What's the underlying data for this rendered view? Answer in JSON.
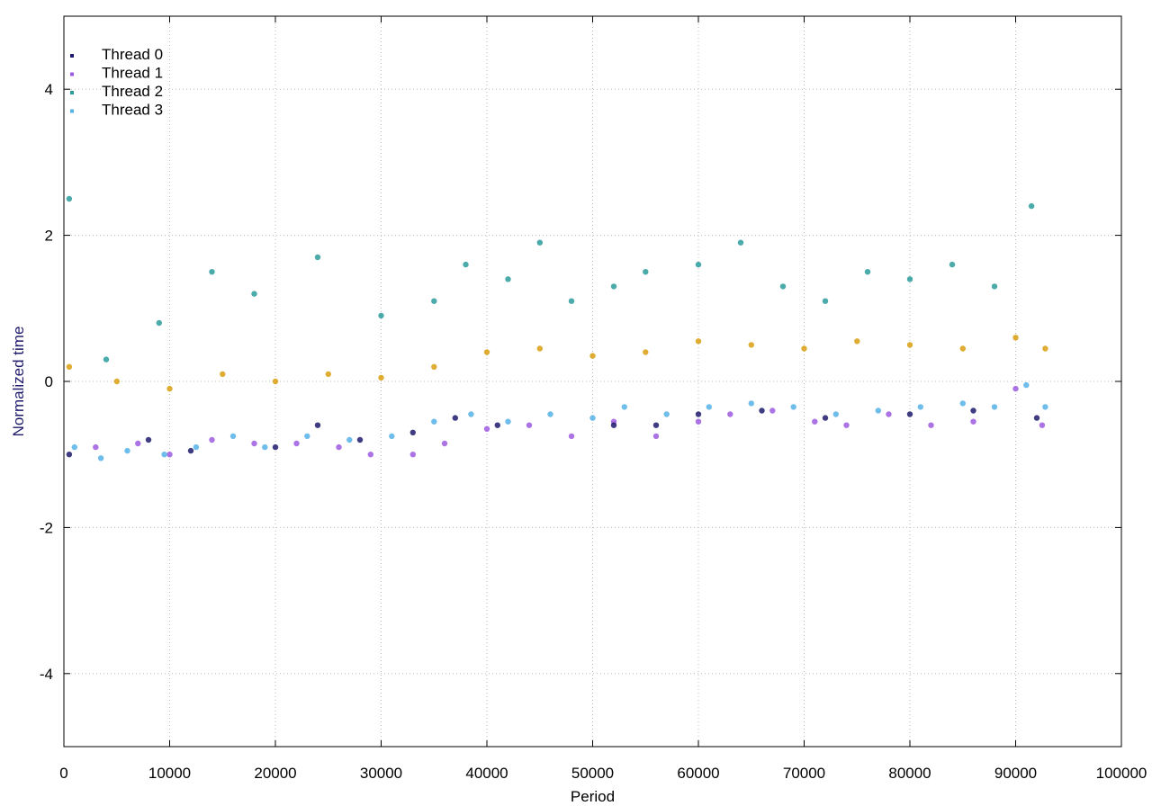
{
  "chart_data": {
    "type": "scatter",
    "title": "",
    "xlabel": "Period",
    "ylabel": "Normalized time",
    "xlim": [
      0,
      100000
    ],
    "ylim": [
      -5,
      5
    ],
    "xticks": [
      0,
      10000,
      20000,
      30000,
      40000,
      50000,
      60000,
      70000,
      80000,
      90000,
      100000
    ],
    "yticks": [
      -4,
      -2,
      0,
      2,
      4
    ],
    "grid": true,
    "legend_position": "top-left",
    "data_extent_x": [
      0,
      93000
    ],
    "series": [
      {
        "name": "Thread 0",
        "color": "#1f1a6b",
        "points": [
          [
            500,
            -1.0
          ],
          [
            8000,
            -0.8
          ],
          [
            12000,
            -0.95
          ],
          [
            20000,
            -0.9
          ],
          [
            24000,
            -0.6
          ],
          [
            28000,
            -0.8
          ],
          [
            33000,
            -0.7
          ],
          [
            37000,
            -0.5
          ],
          [
            41000,
            -0.6
          ],
          [
            52000,
            -0.6
          ],
          [
            56000,
            -0.6
          ],
          [
            60000,
            -0.45
          ],
          [
            66000,
            -0.4
          ],
          [
            72000,
            -0.5
          ],
          [
            80000,
            -0.45
          ],
          [
            86000,
            -0.4
          ],
          [
            92000,
            -0.5
          ]
        ]
      },
      {
        "name": "Thread 1",
        "color": "#9d5be0",
        "points": [
          [
            3000,
            -0.9
          ],
          [
            7000,
            -0.85
          ],
          [
            10000,
            -1.0
          ],
          [
            14000,
            -0.8
          ],
          [
            18000,
            -0.85
          ],
          [
            22000,
            -0.85
          ],
          [
            26000,
            -0.9
          ],
          [
            29000,
            -1.0
          ],
          [
            33000,
            -1.0
          ],
          [
            36000,
            -0.85
          ],
          [
            40000,
            -0.65
          ],
          [
            44000,
            -0.6
          ],
          [
            48000,
            -0.75
          ],
          [
            52000,
            -0.55
          ],
          [
            56000,
            -0.75
          ],
          [
            60000,
            -0.55
          ],
          [
            63000,
            -0.45
          ],
          [
            67000,
            -0.4
          ],
          [
            71000,
            -0.55
          ],
          [
            74000,
            -0.6
          ],
          [
            78000,
            -0.45
          ],
          [
            82000,
            -0.6
          ],
          [
            86000,
            -0.55
          ],
          [
            90000,
            -0.1
          ],
          [
            92500,
            -0.6
          ]
        ]
      },
      {
        "name": "Thread 2",
        "color": "#2b9b9b",
        "points": [
          [
            500,
            2.5
          ],
          [
            4000,
            0.3
          ],
          [
            9000,
            0.8
          ],
          [
            14000,
            1.5
          ],
          [
            18000,
            1.2
          ],
          [
            24000,
            1.7
          ],
          [
            30000,
            0.9
          ],
          [
            35000,
            1.1
          ],
          [
            38000,
            1.6
          ],
          [
            42000,
            1.4
          ],
          [
            45000,
            1.9
          ],
          [
            48000,
            1.1
          ],
          [
            52000,
            1.3
          ],
          [
            55000,
            1.5
          ],
          [
            60000,
            1.6
          ],
          [
            64000,
            1.9
          ],
          [
            68000,
            1.3
          ],
          [
            72000,
            1.1
          ],
          [
            76000,
            1.5
          ],
          [
            80000,
            1.4
          ],
          [
            84000,
            1.6
          ],
          [
            88000,
            1.3
          ],
          [
            91500,
            2.4
          ]
        ]
      },
      {
        "name": "Thread 3",
        "color": "#56b1e8",
        "points": [
          [
            1000,
            -0.9
          ],
          [
            3500,
            -1.05
          ],
          [
            6000,
            -0.95
          ],
          [
            9500,
            -1.0
          ],
          [
            12500,
            -0.9
          ],
          [
            16000,
            -0.75
          ],
          [
            19000,
            -0.9
          ],
          [
            23000,
            -0.75
          ],
          [
            27000,
            -0.8
          ],
          [
            31000,
            -0.75
          ],
          [
            35000,
            -0.55
          ],
          [
            38500,
            -0.45
          ],
          [
            42000,
            -0.55
          ],
          [
            46000,
            -0.45
          ],
          [
            50000,
            -0.5
          ],
          [
            53000,
            -0.35
          ],
          [
            57000,
            -0.45
          ],
          [
            61000,
            -0.35
          ],
          [
            65000,
            -0.3
          ],
          [
            69000,
            -0.35
          ],
          [
            73000,
            -0.45
          ],
          [
            77000,
            -0.4
          ],
          [
            81000,
            -0.35
          ],
          [
            85000,
            -0.3
          ],
          [
            88000,
            -0.35
          ],
          [
            91000,
            -0.05
          ],
          [
            92800,
            -0.35
          ]
        ]
      },
      {
        "name": "",
        "color": "#d99f0f",
        "points": [
          [
            500,
            0.2
          ],
          [
            5000,
            0.0
          ],
          [
            10000,
            -0.1
          ],
          [
            15000,
            0.1
          ],
          [
            20000,
            0.0
          ],
          [
            25000,
            0.1
          ],
          [
            30000,
            0.05
          ],
          [
            35000,
            0.2
          ],
          [
            40000,
            0.4
          ],
          [
            45000,
            0.45
          ],
          [
            50000,
            0.35
          ],
          [
            55000,
            0.4
          ],
          [
            60000,
            0.55
          ],
          [
            65000,
            0.5
          ],
          [
            70000,
            0.45
          ],
          [
            75000,
            0.55
          ],
          [
            80000,
            0.5
          ],
          [
            85000,
            0.45
          ],
          [
            90000,
            0.6
          ],
          [
            92800,
            0.45
          ]
        ]
      }
    ]
  }
}
